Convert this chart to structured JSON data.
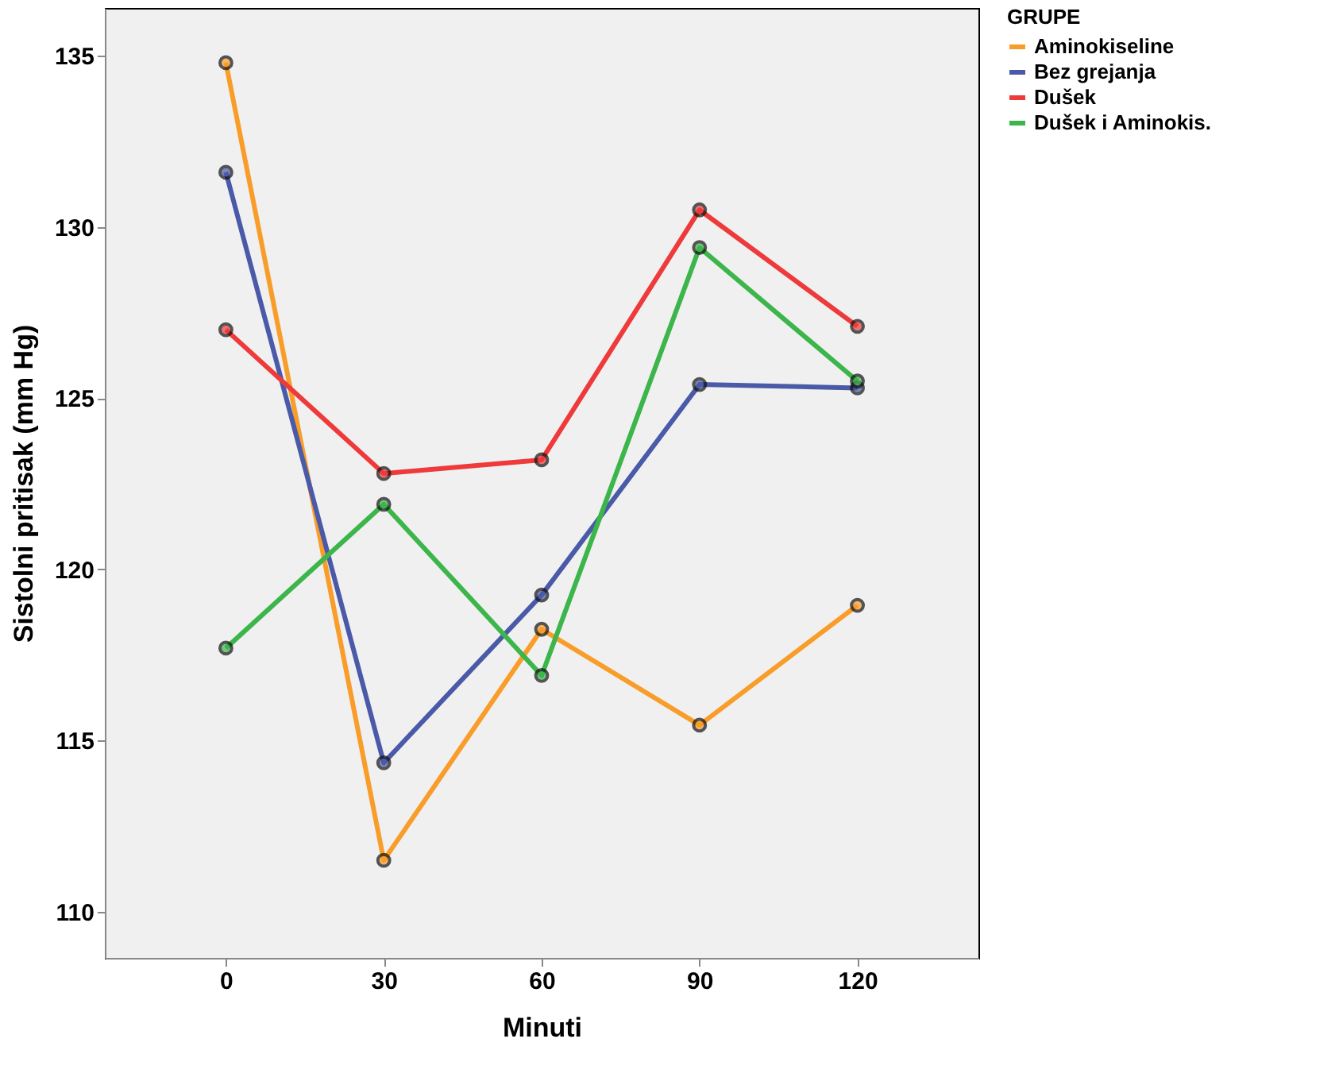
{
  "chart_data": {
    "type": "line",
    "xlabel": "Minuti",
    "ylabel": "Sistolni pritisak (mm Hg)",
    "legend_title": "GRUPE",
    "legend": "right",
    "grid": false,
    "marker": "circle",
    "line_style": "solid",
    "x": [
      0,
      30,
      60,
      90,
      120
    ],
    "xlim": [
      -23,
      143
    ],
    "xticks": [
      0,
      30,
      60,
      90,
      120
    ],
    "ylim": [
      108.65,
      136.4
    ],
    "yticks": [
      110,
      115,
      120,
      125,
      130,
      135
    ],
    "series": [
      {
        "name": "Aminokiseline",
        "color": "#f99d2a",
        "values": [
          134.8,
          111.5,
          118.25,
          115.45,
          118.95
        ]
      },
      {
        "name": "Bez grejanja",
        "color": "#4a5aa8",
        "values": [
          131.6,
          114.35,
          119.25,
          125.4,
          125.3
        ]
      },
      {
        "name": "Dušek",
        "color": "#ee3a3a",
        "values": [
          127.0,
          122.8,
          123.2,
          130.5,
          127.1
        ]
      },
      {
        "name": "Dušek i Aminokis.",
        "color": "#3cb54a",
        "values": [
          117.7,
          121.9,
          116.9,
          129.4,
          125.5
        ]
      }
    ]
  }
}
